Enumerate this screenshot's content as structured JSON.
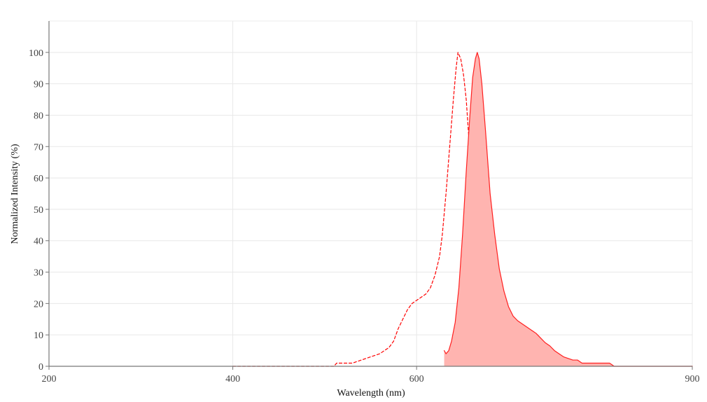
{
  "chart_data": {
    "type": "line",
    "title": "",
    "xlabel": "Wavelength (nm)",
    "ylabel": "Normalized Intensity (%)",
    "xlim": [
      200,
      900
    ],
    "ylim": [
      0,
      110
    ],
    "x_ticks": [
      200,
      400,
      600,
      900
    ],
    "y_ticks": [
      0,
      10,
      20,
      30,
      40,
      50,
      60,
      70,
      80,
      90,
      100
    ],
    "grid": true,
    "legend": "none",
    "series": [
      {
        "style": "dashed",
        "color": "#ff0000",
        "fill": false,
        "points": [
          [
            400,
            0
          ],
          [
            410,
            0
          ],
          [
            420,
            0
          ],
          [
            430,
            0
          ],
          [
            440,
            0
          ],
          [
            450,
            0
          ],
          [
            460,
            0
          ],
          [
            470,
            0
          ],
          [
            480,
            0
          ],
          [
            490,
            0
          ],
          [
            500,
            0
          ],
          [
            510,
            0
          ],
          [
            513,
            1
          ],
          [
            520,
            1
          ],
          [
            530,
            1
          ],
          [
            540,
            2
          ],
          [
            550,
            3
          ],
          [
            560,
            4
          ],
          [
            565,
            5
          ],
          [
            570,
            6
          ],
          [
            575,
            8
          ],
          [
            580,
            12
          ],
          [
            585,
            15
          ],
          [
            590,
            18
          ],
          [
            595,
            20
          ],
          [
            600,
            21
          ],
          [
            605,
            22
          ],
          [
            610,
            23
          ],
          [
            615,
            25
          ],
          [
            620,
            29
          ],
          [
            625,
            35
          ],
          [
            628,
            42
          ],
          [
            632,
            55
          ],
          [
            636,
            70
          ],
          [
            640,
            85
          ],
          [
            643,
            95
          ],
          [
            645,
            100
          ],
          [
            648,
            98
          ],
          [
            651,
            93
          ],
          [
            654,
            85
          ],
          [
            657,
            72
          ],
          [
            660,
            58
          ],
          [
            663,
            45
          ],
          [
            666,
            33
          ],
          [
            669,
            22
          ],
          [
            672,
            14
          ],
          [
            676,
            8
          ]
        ]
      },
      {
        "style": "solid",
        "color": "#ff2020",
        "fill": true,
        "fill_color": "#ffb4b0",
        "points": [
          [
            630,
            5
          ],
          [
            632,
            4
          ],
          [
            635,
            5
          ],
          [
            638,
            8
          ],
          [
            642,
            14
          ],
          [
            646,
            25
          ],
          [
            650,
            42
          ],
          [
            654,
            62
          ],
          [
            658,
            80
          ],
          [
            661,
            92
          ],
          [
            664,
            98
          ],
          [
            666,
            100
          ],
          [
            668,
            98
          ],
          [
            671,
            90
          ],
          [
            675,
            75
          ],
          [
            680,
            55
          ],
          [
            685,
            42
          ],
          [
            690,
            31
          ],
          [
            695,
            24
          ],
          [
            700,
            19
          ],
          [
            705,
            16
          ],
          [
            710,
            14.5
          ],
          [
            715,
            13.5
          ],
          [
            720,
            12.5
          ],
          [
            725,
            11.5
          ],
          [
            730,
            10.5
          ],
          [
            735,
            9
          ],
          [
            740,
            7.5
          ],
          [
            745,
            6.5
          ],
          [
            750,
            5
          ],
          [
            755,
            4
          ],
          [
            760,
            3
          ],
          [
            765,
            2.5
          ],
          [
            770,
            2
          ],
          [
            775,
            2
          ],
          [
            780,
            1
          ],
          [
            790,
            1
          ],
          [
            800,
            1
          ],
          [
            810,
            1
          ],
          [
            815,
            0
          ],
          [
            830,
            0
          ],
          [
            850,
            0
          ],
          [
            870,
            0
          ],
          [
            890,
            0
          ],
          [
            900,
            0
          ]
        ]
      }
    ]
  }
}
